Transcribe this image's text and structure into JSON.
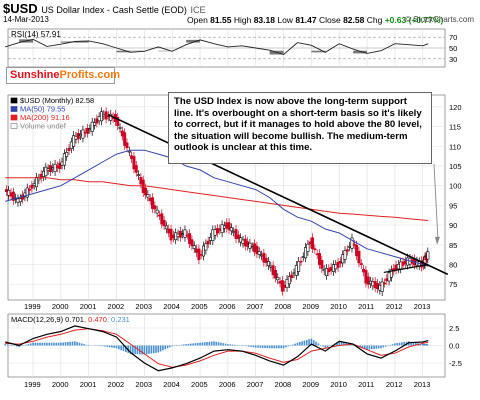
{
  "header": {
    "symbol": "$USD",
    "name": "US Dollar Index - Cash Settle (EOD)",
    "exchange": "ICE",
    "date": "14-Mar-2013",
    "open_label": "Open",
    "open": "81.55",
    "high_label": "High",
    "high": "83.18",
    "low_label": "Low",
    "low": "81.47",
    "close_label": "Close",
    "close": "82.58",
    "chg_label": "Chg",
    "chg": "+0.63 (+0.77%)",
    "brand": "© StockCharts.com"
  },
  "logo": {
    "part1": "Sunshine",
    "part2": "Profits.com"
  },
  "annotation": "The USD Index is now above the long-term support line. It's overbought on a short-term basis so it's likely to correct, but if it manages to hold above the 80 level, the situation will become bullish. The medium-term outlook is unclear at this time.",
  "colors": {
    "rsi": "#222222",
    "price_up": "#000000",
    "price_down": "#cc0022",
    "ma50": "#3344aa",
    "ma200": "#dd2222",
    "trendline": "#000000",
    "macd": "#000000",
    "signal": "#dd2222",
    "histogram": "#4a8fcf"
  },
  "chart_data": [
    {
      "type": "line",
      "panel": "RSI",
      "label": "RSI(14) 57.91",
      "y_ticks": [
        30,
        50,
        70
      ],
      "ylim": [
        15,
        85
      ],
      "x": [
        1998.0,
        1998.5,
        1999.0,
        1999.5,
        2000.0,
        2000.5,
        2001.0,
        2001.5,
        2002.0,
        2002.5,
        2003.0,
        2003.5,
        2004.0,
        2004.5,
        2005.0,
        2005.5,
        2006.0,
        2006.5,
        2007.0,
        2007.5,
        2008.0,
        2008.5,
        2009.0,
        2009.5,
        2010.0,
        2010.5,
        2011.0,
        2011.5,
        2012.0,
        2012.5,
        2013.0,
        2013.2
      ],
      "values": [
        52,
        60,
        66,
        53,
        57,
        62,
        63,
        58,
        50,
        42,
        44,
        52,
        44,
        56,
        65,
        58,
        52,
        54,
        50,
        46,
        38,
        60,
        55,
        42,
        58,
        48,
        40,
        45,
        58,
        56,
        54,
        57.91
      ]
    },
    {
      "type": "candlestick",
      "panel": "price",
      "legend": [
        "$USD (Monthly) 82.58",
        "MA(50) 79.55",
        "MA(200) 91.16",
        "Volume undef"
      ],
      "x_ticks": [
        "1999",
        "2000",
        "2001",
        "2002",
        "2003",
        "2004",
        "2005",
        "2006",
        "2007",
        "2008",
        "2009",
        "2010",
        "2011",
        "2012",
        "2013"
      ],
      "y_ticks": [
        75,
        80,
        85,
        90,
        95,
        100,
        105,
        110,
        115,
        120
      ],
      "ylim": [
        71,
        123
      ],
      "x": [
        1998.0,
        1998.5,
        1999.0,
        1999.5,
        2000.0,
        2000.5,
        2001.0,
        2001.5,
        2002.0,
        2002.5,
        2003.0,
        2003.5,
        2004.0,
        2004.5,
        2005.0,
        2005.5,
        2006.0,
        2006.5,
        2007.0,
        2007.5,
        2008.0,
        2008.5,
        2009.0,
        2009.5,
        2010.0,
        2010.5,
        2011.0,
        2011.5,
        2012.0,
        2012.5,
        2013.0,
        2013.2
      ],
      "close": [
        99,
        96,
        100,
        104,
        105,
        112,
        114,
        118,
        117,
        108,
        99,
        93,
        87,
        88,
        82,
        88,
        90,
        86,
        84,
        80,
        74,
        79,
        86,
        78,
        80,
        86,
        76,
        74,
        79,
        81,
        80,
        82.58
      ],
      "ma50": [
        96,
        97,
        98,
        99,
        100,
        102,
        104,
        106,
        108,
        109,
        109,
        108,
        107,
        105,
        104,
        102,
        101,
        100,
        99,
        97,
        94,
        92,
        91,
        89,
        88,
        86,
        84,
        83,
        82,
        81,
        80,
        79.55
      ],
      "ma200": [
        102,
        102,
        102,
        102,
        101.5,
        101.5,
        101,
        101,
        100.5,
        100,
        100,
        99.5,
        99,
        98.5,
        98,
        97.5,
        97,
        96.5,
        96,
        95.5,
        95,
        94.5,
        94,
        93.5,
        93,
        92.8,
        92.5,
        92.2,
        92,
        91.6,
        91.3,
        91.16
      ],
      "trendline": [
        [
          2001.7,
          118
        ],
        [
          2013.9,
          77.5
        ]
      ],
      "support_line": [
        [
          2011.6,
          78
        ],
        [
          2013.2,
          80
        ]
      ]
    },
    {
      "type": "line",
      "panel": "MACD",
      "label": "MACD(12,26,9) 0.701, 0.470, 0.231",
      "y_ticks": [
        -2.5,
        0.0,
        2.5
      ],
      "ylim": [
        -4.5,
        4.5
      ],
      "x": [
        1998.0,
        1998.5,
        1999.0,
        1999.5,
        2000.0,
        2000.5,
        2001.0,
        2001.5,
        2002.0,
        2002.5,
        2003.0,
        2003.5,
        2004.0,
        2004.5,
        2005.0,
        2005.5,
        2006.0,
        2006.5,
        2007.0,
        2007.5,
        2008.0,
        2008.5,
        2009.0,
        2009.5,
        2010.0,
        2010.5,
        2011.0,
        2011.5,
        2012.0,
        2012.5,
        2013.0,
        2013.2
      ],
      "macd": [
        0.5,
        0.0,
        1.0,
        1.6,
        2.0,
        2.8,
        2.4,
        2.0,
        1.2,
        -1.0,
        -2.5,
        -3.6,
        -3.2,
        -2.6,
        -1.8,
        -0.8,
        -0.6,
        -0.8,
        -1.4,
        -2.2,
        -2.8,
        -1.6,
        0.2,
        -0.8,
        0.6,
        0.2,
        -1.2,
        -1.8,
        -0.8,
        0.4,
        0.5,
        0.701
      ],
      "signal": [
        0.3,
        0.2,
        0.6,
        1.2,
        1.6,
        2.2,
        2.4,
        2.1,
        1.6,
        0.2,
        -1.2,
        -2.6,
        -3.1,
        -2.8,
        -2.2,
        -1.4,
        -0.8,
        -0.8,
        -1.1,
        -1.8,
        -2.4,
        -2.0,
        -0.8,
        -0.4,
        0.0,
        0.2,
        -0.6,
        -1.4,
        -1.1,
        -0.2,
        0.3,
        0.47
      ],
      "histogram": [
        0.2,
        -0.2,
        0.4,
        0.4,
        0.4,
        0.6,
        0.0,
        -0.1,
        -0.4,
        -1.2,
        -1.3,
        -1.0,
        -0.1,
        0.2,
        0.4,
        0.6,
        0.2,
        0.0,
        -0.3,
        -0.4,
        -0.4,
        0.4,
        1.0,
        -0.4,
        0.6,
        0.0,
        -0.6,
        -0.4,
        0.3,
        0.6,
        0.2,
        0.231
      ],
      "x_ticks": [
        "1999",
        "2000",
        "2001",
        "2002",
        "2003",
        "2004",
        "2005",
        "2006",
        "2007",
        "2008",
        "2009",
        "2010",
        "2011",
        "2012",
        "2013"
      ]
    }
  ]
}
